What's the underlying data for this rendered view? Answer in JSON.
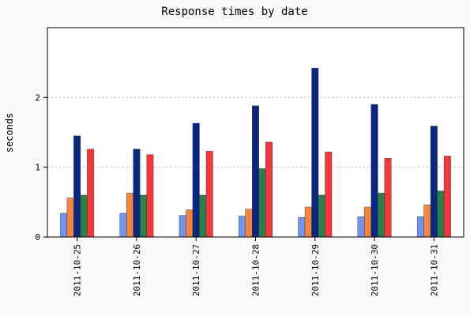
{
  "chart_data": {
    "type": "bar",
    "title": "Response times by date",
    "xlabel": "",
    "ylabel": "seconds",
    "ylim": [
      0,
      3
    ],
    "yticks": [
      0,
      1,
      2
    ],
    "grid": "horizontal-dotted",
    "legend": "none",
    "categories": [
      "2011-10-25",
      "2011-10-26",
      "2011-10-27",
      "2011-10-28",
      "2011-10-29",
      "2011-10-30",
      "2011-10-31"
    ],
    "series": [
      {
        "color": "#6f95f0",
        "values": [
          0.34,
          0.34,
          0.31,
          0.3,
          0.28,
          0.29,
          0.29
        ]
      },
      {
        "color": "#f7843c",
        "values": [
          0.56,
          0.63,
          0.39,
          0.4,
          0.43,
          0.43,
          0.46
        ]
      },
      {
        "color": "#072783",
        "values": [
          1.45,
          1.26,
          1.63,
          1.88,
          2.42,
          1.9,
          1.59
        ]
      },
      {
        "color": "#2a8048",
        "values": [
          0.6,
          0.6,
          0.6,
          0.98,
          0.6,
          0.63,
          0.66
        ]
      },
      {
        "color": "#f5363a",
        "values": [
          1.26,
          1.18,
          1.23,
          1.36,
          1.22,
          1.13,
          1.16
        ]
      }
    ]
  }
}
